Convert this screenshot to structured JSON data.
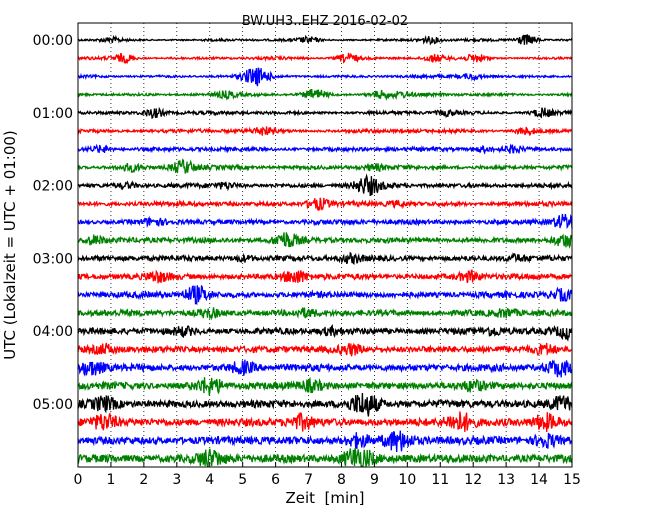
{
  "chart_data": {
    "type": "line",
    "title": "BW.UH3..EHZ 2016-02-02",
    "xlabel": "Zeit  [min]",
    "ylabel": "UTC (Lokalzeit = UTC + 01:00)",
    "xlim": [
      0,
      15
    ],
    "x_ticks": [
      "0",
      "1",
      "2",
      "3",
      "4",
      "5",
      "6",
      "7",
      "8",
      "9",
      "10",
      "11",
      "12",
      "13",
      "14",
      "15"
    ],
    "y_tick_labels": [
      "00:00",
      "01:00",
      "02:00",
      "03:00",
      "04:00",
      "05:00"
    ],
    "grid": "vertical dotted at each minute",
    "series_colors": [
      "#000000",
      "#ff0000",
      "#0000ff",
      "#008000"
    ],
    "trace_interval_minutes": 15,
    "trace_count": 24,
    "traces": [
      {
        "start": "00:00",
        "color": "#000000",
        "events": [
          [
            1.0,
            0.4
          ],
          [
            7.0,
            0.5
          ],
          [
            10.7,
            0.6
          ],
          [
            13.6,
            1.0
          ]
        ]
      },
      {
        "start": "00:15",
        "color": "#ff0000",
        "events": [
          [
            1.4,
            0.8
          ],
          [
            8.2,
            0.9
          ],
          [
            10.8,
            0.6
          ],
          [
            12.1,
            0.7
          ]
        ]
      },
      {
        "start": "00:30",
        "color": "#0000ff",
        "events": [
          [
            5.4,
            1.6
          ],
          [
            12.0,
            0.5
          ]
        ]
      },
      {
        "start": "00:45",
        "color": "#008000",
        "events": [
          [
            4.5,
            0.5
          ],
          [
            7.2,
            0.9
          ],
          [
            9.2,
            0.7
          ],
          [
            9.8,
            0.4
          ]
        ]
      },
      {
        "start": "01:00",
        "color": "#000000",
        "events": [
          [
            2.3,
            0.9
          ],
          [
            11.2,
            0.5
          ],
          [
            14.1,
            0.8
          ]
        ]
      },
      {
        "start": "01:15",
        "color": "#ff0000",
        "events": [
          [
            5.6,
            0.7
          ],
          [
            13.6,
            0.6
          ]
        ]
      },
      {
        "start": "01:30",
        "color": "#0000ff",
        "events": [
          [
            0.7,
            0.6
          ],
          [
            12.3,
            0.5
          ],
          [
            13.2,
            0.6
          ]
        ]
      },
      {
        "start": "01:45",
        "color": "#008000",
        "events": [
          [
            1.6,
            0.6
          ],
          [
            3.2,
            1.2
          ],
          [
            9.0,
            0.5
          ]
        ]
      },
      {
        "start": "02:00",
        "color": "#000000",
        "events": [
          [
            1.5,
            0.4
          ],
          [
            4.5,
            0.5
          ],
          [
            8.8,
            1.6
          ]
        ]
      },
      {
        "start": "02:15",
        "color": "#ff0000",
        "events": [
          [
            7.3,
            1.0
          ],
          [
            9.7,
            0.4
          ]
        ]
      },
      {
        "start": "02:30",
        "color": "#0000ff",
        "events": [
          [
            2.3,
            0.5
          ],
          [
            14.8,
            1.3
          ]
        ]
      },
      {
        "start": "02:45",
        "color": "#008000",
        "events": [
          [
            0.5,
            0.8
          ],
          [
            6.3,
            1.4
          ],
          [
            14.8,
            1.0
          ]
        ]
      },
      {
        "start": "03:00",
        "color": "#000000",
        "events": [
          [
            5.0,
            0.5
          ],
          [
            8.3,
            0.6
          ],
          [
            13.3,
            0.5
          ]
        ]
      },
      {
        "start": "03:15",
        "color": "#ff0000",
        "events": [
          [
            2.4,
            0.8
          ],
          [
            6.6,
            1.2
          ],
          [
            11.9,
            0.9
          ]
        ]
      },
      {
        "start": "03:30",
        "color": "#0000ff",
        "events": [
          [
            3.6,
            1.5
          ],
          [
            14.7,
            0.9
          ]
        ]
      },
      {
        "start": "03:45",
        "color": "#008000",
        "events": [
          [
            4.0,
            0.7
          ],
          [
            6.9,
            0.5
          ],
          [
            13.0,
            0.6
          ]
        ]
      },
      {
        "start": "04:00",
        "color": "#000000",
        "events": [
          [
            3.2,
            0.6
          ],
          [
            7.7,
            0.5
          ],
          [
            12.6,
            0.6
          ],
          [
            14.9,
            1.2
          ]
        ]
      },
      {
        "start": "04:15",
        "color": "#ff0000",
        "events": [
          [
            0.8,
            0.7
          ],
          [
            8.3,
            0.8
          ],
          [
            14.2,
            0.8
          ]
        ]
      },
      {
        "start": "04:30",
        "color": "#0000ff",
        "events": [
          [
            0.4,
            1.2
          ],
          [
            5.0,
            1.0
          ],
          [
            14.6,
            1.4
          ]
        ]
      },
      {
        "start": "04:45",
        "color": "#008000",
        "events": [
          [
            4.0,
            1.4
          ],
          [
            7.1,
            0.8
          ],
          [
            12.0,
            0.7
          ]
        ]
      },
      {
        "start": "05:00",
        "color": "#000000",
        "events": [
          [
            0.8,
            1.1
          ],
          [
            8.7,
            2.0
          ],
          [
            14.7,
            1.3
          ]
        ]
      },
      {
        "start": "05:15",
        "color": "#ff0000",
        "events": [
          [
            0.8,
            1.3
          ],
          [
            6.8,
            1.2
          ],
          [
            11.6,
            1.6
          ],
          [
            14.2,
            1.4
          ]
        ]
      },
      {
        "start": "05:30",
        "color": "#0000ff",
        "events": [
          [
            8.5,
            1.1
          ],
          [
            9.7,
            1.6
          ],
          [
            14.2,
            1.1
          ]
        ]
      },
      {
        "start": "05:45",
        "color": "#008000",
        "events": [
          [
            4.0,
            1.5
          ],
          [
            8.5,
            2.0
          ]
        ]
      }
    ]
  }
}
